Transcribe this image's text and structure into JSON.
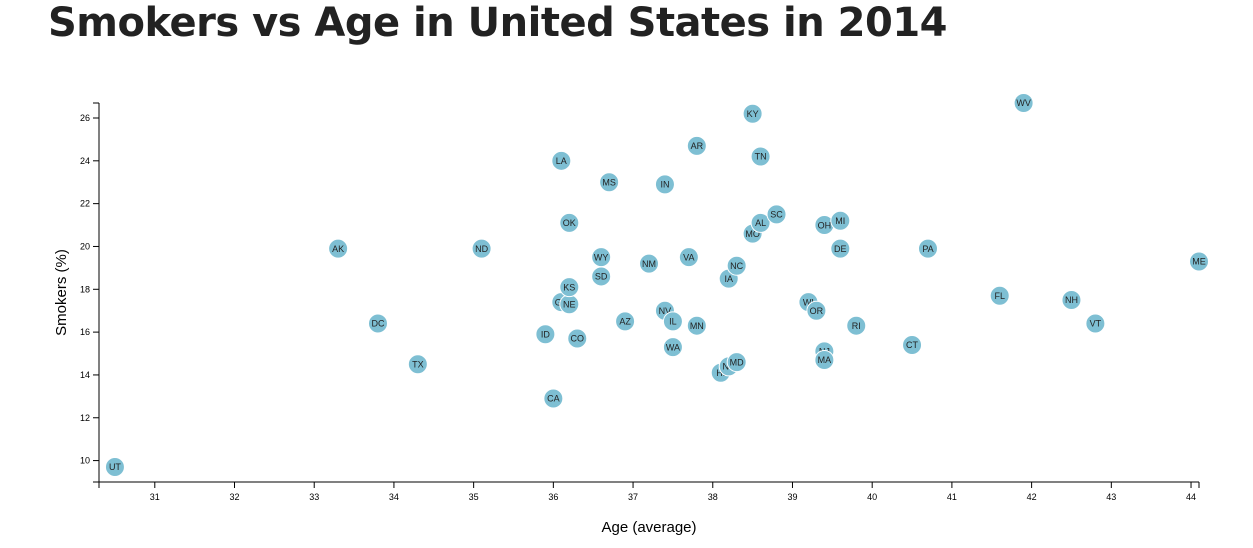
{
  "page": {
    "title": "Smokers vs Age in United States in 2014"
  },
  "chart_data": {
    "type": "scatter",
    "title": "Smokers vs Age in United States in 2014",
    "xlabel": "Age (average)",
    "ylabel": "Smokers (%)",
    "xlim": [
      30.3,
      44.1
    ],
    "ylim": [
      9.0,
      26.7
    ],
    "xticks": [
      31,
      32,
      33,
      34,
      35,
      36,
      37,
      38,
      39,
      40,
      41,
      42,
      43,
      44
    ],
    "yticks": [
      10,
      12,
      14,
      16,
      18,
      20,
      22,
      24,
      26
    ],
    "grid": false,
    "colors": {
      "point": "#7ebfd3",
      "label": "#222222"
    },
    "points": [
      {
        "label": "UT",
        "x": 30.5,
        "y": 9.7
      },
      {
        "label": "AK",
        "x": 33.3,
        "y": 19.9
      },
      {
        "label": "DC",
        "x": 33.8,
        "y": 16.4
      },
      {
        "label": "TX",
        "x": 34.3,
        "y": 14.5
      },
      {
        "label": "ND",
        "x": 35.1,
        "y": 19.9
      },
      {
        "label": "CA",
        "x": 36.0,
        "y": 12.9
      },
      {
        "label": "ID",
        "x": 35.9,
        "y": 15.9
      },
      {
        "label": "CO",
        "x": 36.3,
        "y": 15.7
      },
      {
        "label": "GA",
        "x": 36.1,
        "y": 17.4
      },
      {
        "label": "NE",
        "x": 36.2,
        "y": 17.3
      },
      {
        "label": "KS",
        "x": 36.2,
        "y": 18.1
      },
      {
        "label": "LA",
        "x": 36.1,
        "y": 24.0
      },
      {
        "label": "OK",
        "x": 36.2,
        "y": 21.1
      },
      {
        "label": "MS",
        "x": 36.7,
        "y": 23.0
      },
      {
        "label": "WY",
        "x": 36.6,
        "y": 19.5
      },
      {
        "label": "SD",
        "x": 36.6,
        "y": 18.6
      },
      {
        "label": "AZ",
        "x": 36.9,
        "y": 16.5
      },
      {
        "label": "NM",
        "x": 37.2,
        "y": 19.2
      },
      {
        "label": "IN",
        "x": 37.4,
        "y": 22.9
      },
      {
        "label": "NV",
        "x": 37.4,
        "y": 17.0
      },
      {
        "label": "IL",
        "x": 37.5,
        "y": 16.5
      },
      {
        "label": "WA",
        "x": 37.5,
        "y": 15.3
      },
      {
        "label": "VA",
        "x": 37.7,
        "y": 19.5
      },
      {
        "label": "AR",
        "x": 37.8,
        "y": 24.7
      },
      {
        "label": "MN",
        "x": 37.8,
        "y": 16.3
      },
      {
        "label": "HI",
        "x": 38.1,
        "y": 14.1
      },
      {
        "label": "IA",
        "x": 38.2,
        "y": 18.5
      },
      {
        "label": "NY",
        "x": 38.2,
        "y": 14.4
      },
      {
        "label": "NC",
        "x": 38.3,
        "y": 19.1
      },
      {
        "label": "MD",
        "x": 38.3,
        "y": 14.6
      },
      {
        "label": "KY",
        "x": 38.5,
        "y": 26.2
      },
      {
        "label": "MO",
        "x": 38.5,
        "y": 20.6
      },
      {
        "label": "TN",
        "x": 38.6,
        "y": 24.2
      },
      {
        "label": "AL",
        "x": 38.6,
        "y": 21.1
      },
      {
        "label": "SC",
        "x": 38.8,
        "y": 21.5
      },
      {
        "label": "WI",
        "x": 39.2,
        "y": 17.4
      },
      {
        "label": "OR",
        "x": 39.3,
        "y": 17.0
      },
      {
        "label": "OH",
        "x": 39.4,
        "y": 21.0
      },
      {
        "label": "NJ",
        "x": 39.4,
        "y": 15.1
      },
      {
        "label": "MA",
        "x": 39.4,
        "y": 14.7
      },
      {
        "label": "MI",
        "x": 39.6,
        "y": 21.2
      },
      {
        "label": "DE",
        "x": 39.6,
        "y": 19.9
      },
      {
        "label": "RI",
        "x": 39.8,
        "y": 16.3
      },
      {
        "label": "CT",
        "x": 40.5,
        "y": 15.4
      },
      {
        "label": "PA",
        "x": 40.7,
        "y": 19.9
      },
      {
        "label": "FL",
        "x": 41.6,
        "y": 17.7
      },
      {
        "label": "WV",
        "x": 41.9,
        "y": 26.7
      },
      {
        "label": "NH",
        "x": 42.5,
        "y": 17.5
      },
      {
        "label": "VT",
        "x": 42.8,
        "y": 16.4
      },
      {
        "label": "ME",
        "x": 44.1,
        "y": 19.3
      }
    ]
  }
}
